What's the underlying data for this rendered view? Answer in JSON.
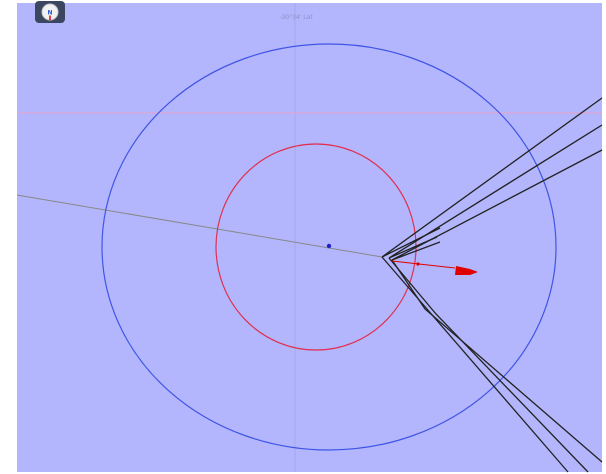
{
  "chart": {
    "latitude_label": "-30°34' Lat",
    "compass_label": "N",
    "colors": {
      "water": "#b3b6fd",
      "outer_ring": "#3f55e6",
      "inner_ring": "#e0304f",
      "grid": "#a9a8e6",
      "latitude_line": "#e6a2c8",
      "heading_line": "#888888",
      "anchor_dot": "#2020c8",
      "course_lines": "#222222",
      "boat": "#e00000"
    },
    "icons": {
      "compass": "compass-icon",
      "boat": "boat-icon",
      "anchor_position": "anchor-dot-icon"
    }
  }
}
